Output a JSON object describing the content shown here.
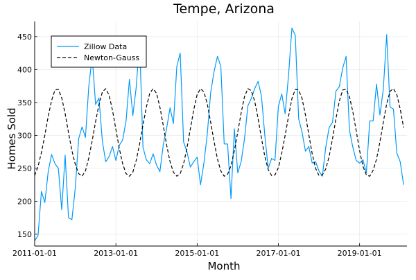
{
  "chart_data": {
    "type": "line",
    "title": "Tempe, Arizona",
    "xlabel": "Month",
    "ylabel": "Homes Sold",
    "x_ticks": [
      "2011-01-01",
      "2013-01-01",
      "2015-01-01",
      "2017-01-01",
      "2019-01-01"
    ],
    "y_ticks": [
      150,
      200,
      250,
      300,
      350,
      400,
      450
    ],
    "xlim": [
      "2011-01-01",
      "2020-03-01"
    ],
    "ylim": [
      132,
      473
    ],
    "grid": true,
    "legend_position": "top-left",
    "x": [
      "2011-01-01",
      "2011-02-01",
      "2011-03-01",
      "2011-04-01",
      "2011-05-01",
      "2011-06-01",
      "2011-07-01",
      "2011-08-01",
      "2011-09-01",
      "2011-10-01",
      "2011-11-01",
      "2011-12-01",
      "2012-01-01",
      "2012-02-01",
      "2012-03-01",
      "2012-04-01",
      "2012-05-01",
      "2012-06-01",
      "2012-07-01",
      "2012-08-01",
      "2012-09-01",
      "2012-10-01",
      "2012-11-01",
      "2012-12-01",
      "2013-01-01",
      "2013-02-01",
      "2013-03-01",
      "2013-04-01",
      "2013-05-01",
      "2013-06-01",
      "2013-07-01",
      "2013-08-01",
      "2013-09-01",
      "2013-10-01",
      "2013-11-01",
      "2013-12-01",
      "2014-01-01",
      "2014-02-01",
      "2014-03-01",
      "2014-04-01",
      "2014-05-01",
      "2014-06-01",
      "2014-07-01",
      "2014-08-01",
      "2014-09-01",
      "2014-10-01",
      "2014-11-01",
      "2014-12-01",
      "2015-01-01",
      "2015-02-01",
      "2015-03-01",
      "2015-04-01",
      "2015-05-01",
      "2015-06-01",
      "2015-07-01",
      "2015-08-01",
      "2015-09-01",
      "2015-10-01",
      "2015-11-01",
      "2015-12-01",
      "2016-01-01",
      "2016-02-01",
      "2016-03-01",
      "2016-04-01",
      "2016-05-01",
      "2016-06-01",
      "2016-07-01",
      "2016-08-01",
      "2016-09-01",
      "2016-10-01",
      "2016-11-01",
      "2016-12-01",
      "2017-01-01",
      "2017-02-01",
      "2017-03-01",
      "2017-04-01",
      "2017-05-01",
      "2017-06-01",
      "2017-07-01",
      "2017-08-01",
      "2017-09-01",
      "2017-10-01",
      "2017-11-01",
      "2017-12-01",
      "2018-01-01",
      "2018-02-01",
      "2018-03-01",
      "2018-04-01",
      "2018-05-01",
      "2018-06-01",
      "2018-07-01",
      "2018-08-01",
      "2018-09-01",
      "2018-10-01",
      "2018-11-01",
      "2018-12-01",
      "2019-01-01",
      "2019-02-01",
      "2019-03-01",
      "2019-04-01",
      "2019-05-01",
      "2019-06-01",
      "2019-07-01",
      "2019-08-01",
      "2019-09-01",
      "2019-10-01",
      "2019-11-01",
      "2019-12-01",
      "2020-01-01",
      "2020-02-01"
    ],
    "series": [
      {
        "name": "Zillow Data",
        "style": "solid",
        "color": "#009AFA",
        "values": [
          140,
          148,
          215,
          198,
          245,
          271,
          257,
          250,
          187,
          270,
          175,
          172,
          220,
          295,
          313,
          297,
          375,
          420,
          347,
          357,
          291,
          260,
          268,
          283,
          262,
          285,
          293,
          322,
          385,
          330,
          373,
          443,
          282,
          263,
          257,
          272,
          255,
          245,
          286,
          311,
          342,
          318,
          405,
          425,
          290,
          275,
          252,
          260,
          267,
          225,
          258,
          302,
          365,
          397,
          420,
          405,
          287,
          287,
          204,
          310,
          243,
          260,
          295,
          345,
          356,
          371,
          382,
          360,
          300,
          250,
          265,
          262,
          344,
          363,
          333,
          391,
          463,
          452,
          325,
          305,
          276,
          283,
          258,
          260,
          246,
          238,
          282,
          312,
          320,
          367,
          374,
          402,
          420,
          308,
          282,
          262,
          258,
          263,
          243,
          322,
          322,
          378,
          331,
          370,
          453,
          343,
          340,
          273,
          260,
          225
        ]
      },
      {
        "name": "Newton-Gauss",
        "style": "dashed",
        "color": "#000000",
        "values": [
          239,
          253,
          274,
          300,
          329,
          353,
          369,
          370,
          357,
          333,
          304,
          277,
          256,
          242,
          238,
          246,
          266,
          292,
          321,
          347,
          366,
          371,
          361,
          338,
          309,
          280,
          257,
          242,
          238,
          244,
          262,
          287,
          316,
          343,
          364,
          371,
          364,
          343,
          315,
          285,
          260,
          244,
          238,
          242,
          257,
          281,
          310,
          339,
          362,
          371,
          366,
          348,
          320,
          291,
          264,
          246,
          238,
          241,
          254,
          277,
          305,
          334,
          359,
          371,
          368,
          352,
          326,
          296,
          268,
          248,
          239,
          240,
          251,
          273,
          300,
          329,
          356,
          370,
          369,
          356,
          331,
          301,
          272,
          250,
          239,
          240,
          249,
          268,
          295,
          325,
          352,
          369,
          370,
          359,
          336,
          307,
          277,
          253,
          240,
          238,
          247,
          264,
          290,
          320,
          348,
          367,
          371,
          362,
          340,
          312
        ]
      }
    ]
  }
}
